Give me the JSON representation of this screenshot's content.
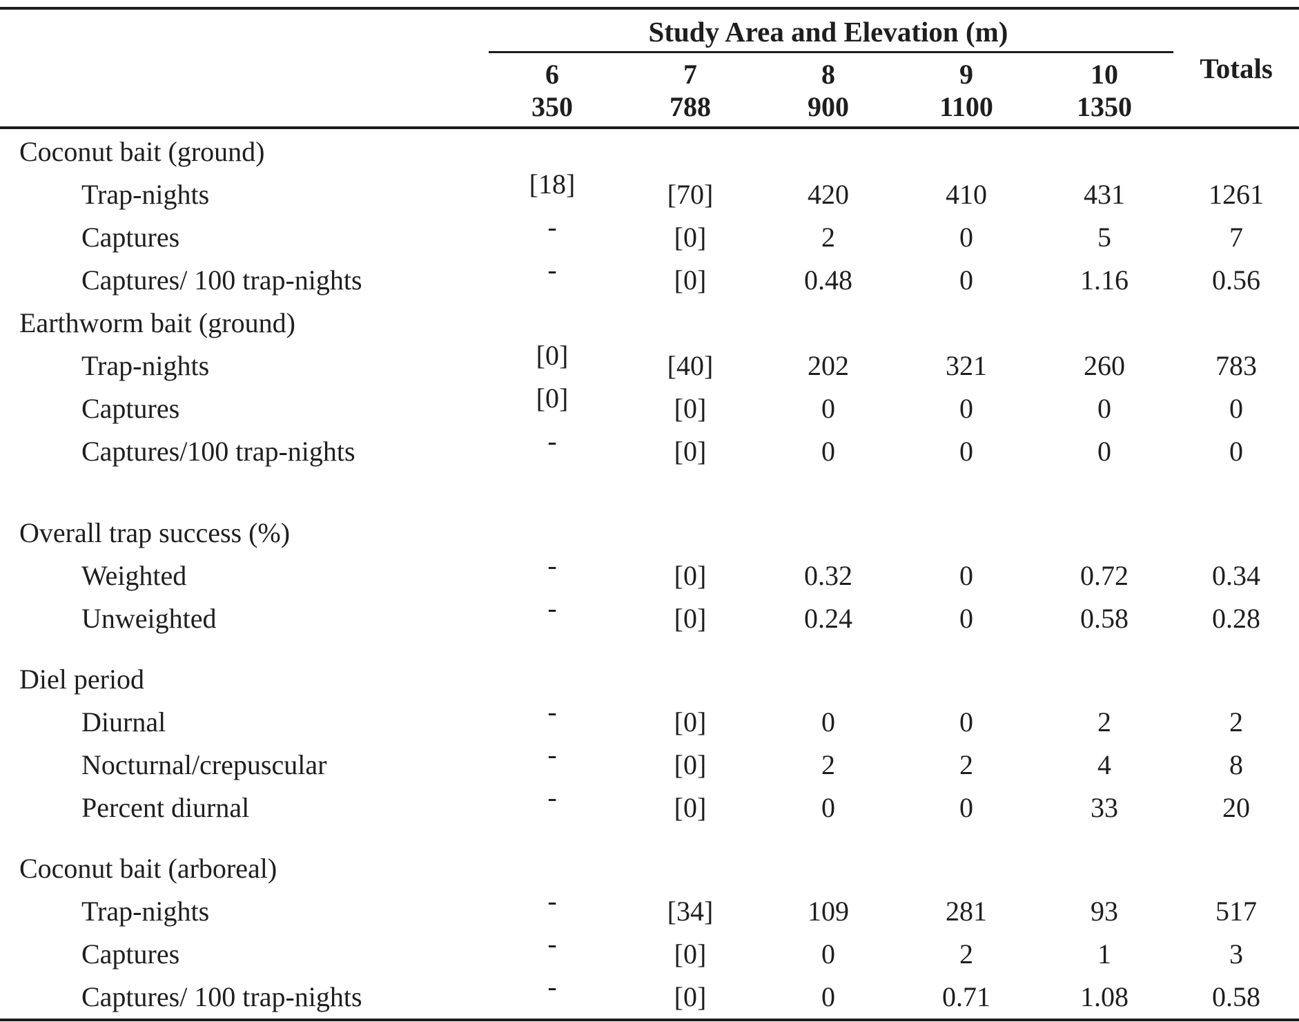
{
  "table": {
    "spanner_title": "Study Area and Elevation (m)",
    "totals_label": "Totals",
    "columns": [
      {
        "area": "6",
        "elevation": "350"
      },
      {
        "area": "7",
        "elevation": "788"
      },
      {
        "area": "8",
        "elevation": "900"
      },
      {
        "area": "9",
        "elevation": "1100"
      },
      {
        "area": "10",
        "elevation": "1350"
      }
    ],
    "sections": [
      {
        "label": "Coconut bait (ground)",
        "spacing_before": "none",
        "rows": [
          {
            "label": "Trap-nights",
            "values": [
              "[18]",
              "[70]",
              "420",
              "410",
              "431"
            ],
            "total": "1261"
          },
          {
            "label": "Captures",
            "values": [
              "-",
              "[0]",
              "2",
              "0",
              "5"
            ],
            "total": "7"
          },
          {
            "label": "Captures/ 100 trap-nights",
            "values": [
              "-",
              "[0]",
              "0.48",
              "0",
              "1.16"
            ],
            "total": "0.56"
          }
        ]
      },
      {
        "label": "Earthworm bait (ground)",
        "spacing_before": "none",
        "rows": [
          {
            "label": "Trap-nights",
            "values": [
              "[0]",
              "[40]",
              "202",
              "321",
              "260"
            ],
            "total": "783"
          },
          {
            "label": "Captures",
            "values": [
              "[0]",
              "[0]",
              "0",
              "0",
              "0"
            ],
            "total": "0"
          },
          {
            "label": "Captures/100 trap-nights",
            "values": [
              "-",
              "[0]",
              "0",
              "0",
              "0"
            ],
            "total": "0"
          }
        ]
      },
      {
        "label": "Overall trap success (%)",
        "spacing_before": "large",
        "rows": [
          {
            "label": "Weighted",
            "values": [
              "-",
              "[0]",
              "0.32",
              "0",
              "0.72"
            ],
            "total": "0.34"
          },
          {
            "label": "Unweighted",
            "values": [
              "-",
              "[0]",
              "0.24",
              "0",
              "0.58"
            ],
            "total": "0.28"
          }
        ]
      },
      {
        "label": "Diel period",
        "spacing_before": "small",
        "rows": [
          {
            "label": "Diurnal",
            "values": [
              "-",
              "[0]",
              "0",
              "0",
              "2"
            ],
            "total": "2"
          },
          {
            "label": "Nocturnal/crepuscular",
            "values": [
              "-",
              "[0]",
              "2",
              "2",
              "4"
            ],
            "total": "8"
          },
          {
            "label": "Percent diurnal",
            "values": [
              "-",
              "[0]",
              "0",
              "0",
              "33"
            ],
            "total": "20"
          }
        ]
      },
      {
        "label": "Coconut bait (arboreal)",
        "spacing_before": "small",
        "rows": [
          {
            "label": "Trap-nights",
            "values": [
              "-",
              "[34]",
              "109",
              "281",
              "93"
            ],
            "total": "517"
          },
          {
            "label": "Captures",
            "values": [
              "-",
              "[0]",
              "0",
              "2",
              "1"
            ],
            "total": "3"
          },
          {
            "label": "Captures/ 100 trap-nights",
            "values": [
              "-",
              "[0]",
              "0",
              "0.71",
              "1.08"
            ],
            "total": "0.58"
          }
        ]
      }
    ]
  }
}
